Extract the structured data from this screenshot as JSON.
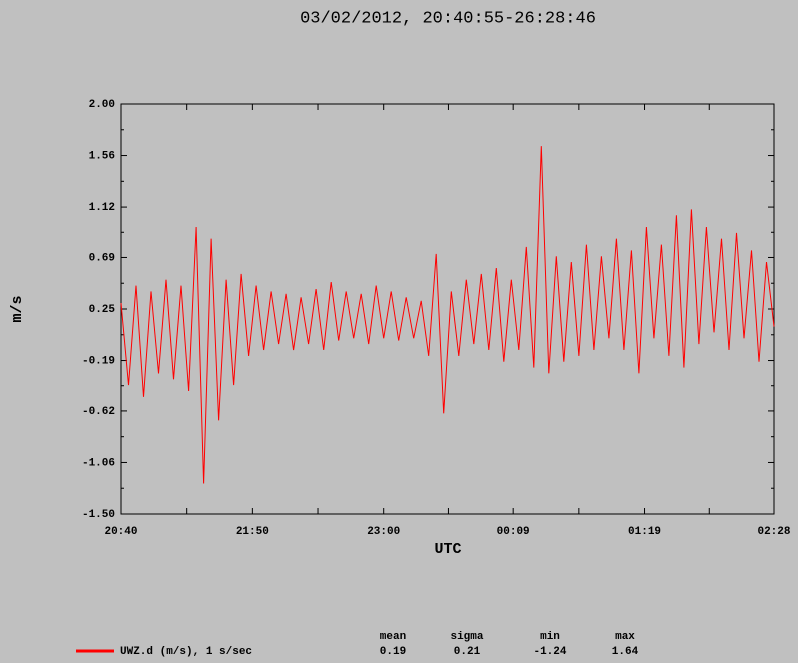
{
  "chart_data": {
    "type": "line",
    "title": "03/02/2012, 20:40:55-26:28:46",
    "x_label": "UTC",
    "y_label": "m/s",
    "xlim": [
      0,
      348
    ],
    "xticks": [
      {
        "value": 0,
        "label": "20:40"
      },
      {
        "value": 70,
        "label": "21:50"
      },
      {
        "value": 140,
        "label": "23:00"
      },
      {
        "value": 209,
        "label": "00:09"
      },
      {
        "value": 279,
        "label": "01:19"
      },
      {
        "value": 348,
        "label": "02:28"
      }
    ],
    "ylim": [
      -1.5,
      2.0
    ],
    "yticks": [
      {
        "value": -1.5,
        "label": "-1.50"
      },
      -1.06,
      -0.62,
      -0.19,
      0.25,
      0.69,
      1.12,
      1.56,
      {
        "value": 2.0,
        "label": "2.00"
      }
    ],
    "x": [
      0,
      4,
      8,
      12,
      16,
      20,
      24,
      28,
      32,
      36,
      40,
      44,
      48,
      52,
      56,
      60,
      64,
      68,
      72,
      76,
      80,
      84,
      88,
      92,
      96,
      100,
      104,
      108,
      112,
      116,
      120,
      124,
      128,
      132,
      136,
      140,
      144,
      148,
      152,
      156,
      160,
      164,
      168,
      172,
      176,
      180,
      184,
      188,
      192,
      196,
      200,
      204,
      208,
      212,
      216,
      220,
      224,
      228,
      232,
      236,
      240,
      244,
      248,
      252,
      256,
      260,
      264,
      268,
      272,
      276,
      280,
      284,
      288,
      292,
      296,
      300,
      304,
      308,
      312,
      316,
      320,
      324,
      328,
      332,
      336,
      340,
      344,
      348
    ],
    "series": [
      {
        "name": "UWZ.d (m/s), 1 s/sec",
        "color": "#ff0000",
        "values": [
          0.3,
          -0.4,
          0.45,
          -0.5,
          0.4,
          -0.3,
          0.5,
          -0.35,
          0.45,
          -0.45,
          0.95,
          -1.24,
          0.85,
          -0.7,
          0.5,
          -0.4,
          0.55,
          -0.15,
          0.45,
          -0.1,
          0.4,
          -0.05,
          0.38,
          -0.1,
          0.35,
          -0.05,
          0.42,
          -0.1,
          0.48,
          -0.02,
          0.4,
          0.0,
          0.38,
          -0.05,
          0.45,
          0.0,
          0.4,
          -0.02,
          0.35,
          0.0,
          0.32,
          -0.15,
          0.72,
          -0.64,
          0.4,
          -0.15,
          0.5,
          -0.05,
          0.55,
          -0.1,
          0.6,
          -0.2,
          0.5,
          -0.1,
          0.78,
          -0.25,
          1.64,
          -0.3,
          0.7,
          -0.2,
          0.65,
          -0.15,
          0.8,
          -0.1,
          0.7,
          0.0,
          0.85,
          -0.1,
          0.75,
          -0.3,
          0.95,
          0.0,
          0.8,
          -0.15,
          1.05,
          -0.25,
          1.1,
          -0.05,
          0.95,
          0.05,
          0.85,
          -0.1,
          0.9,
          0.0,
          0.75,
          -0.2,
          0.65,
          0.1
        ]
      }
    ],
    "stats": {
      "headers": [
        "mean",
        "sigma",
        "min",
        "max"
      ],
      "values": [
        0.19,
        0.21,
        -1.24,
        1.64
      ]
    }
  }
}
